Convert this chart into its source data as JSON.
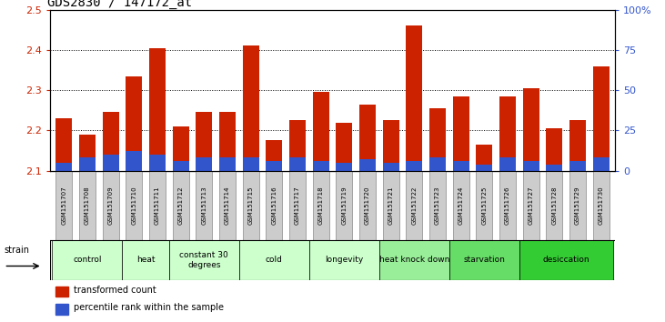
{
  "title": "GDS2830 / 147172_at",
  "samples": [
    "GSM151707",
    "GSM151708",
    "GSM151709",
    "GSM151710",
    "GSM151711",
    "GSM151712",
    "GSM151713",
    "GSM151714",
    "GSM151715",
    "GSM151716",
    "GSM151717",
    "GSM151718",
    "GSM151719",
    "GSM151720",
    "GSM151721",
    "GSM151722",
    "GSM151723",
    "GSM151724",
    "GSM151725",
    "GSM151726",
    "GSM151727",
    "GSM151728",
    "GSM151729",
    "GSM151730"
  ],
  "transformed_count": [
    2.23,
    2.19,
    2.245,
    2.335,
    2.405,
    2.21,
    2.245,
    2.245,
    2.41,
    2.175,
    2.225,
    2.295,
    2.22,
    2.265,
    2.225,
    2.46,
    2.255,
    2.285,
    2.165,
    2.285,
    2.305,
    2.205,
    2.225,
    2.36
  ],
  "percentile_rank_pct": [
    5,
    8,
    10,
    12,
    10,
    6,
    8,
    8,
    8,
    6,
    8,
    6,
    5,
    7,
    5,
    6,
    8,
    6,
    4,
    8,
    6,
    4,
    6,
    8
  ],
  "ylim_left": [
    2.1,
    2.5
  ],
  "ylim_right": [
    0,
    100
  ],
  "yticks_left": [
    2.1,
    2.2,
    2.3,
    2.4,
    2.5
  ],
  "yticks_right": [
    0,
    25,
    50,
    75,
    100
  ],
  "ytick_labels_right": [
    "0",
    "25",
    "50",
    "75",
    "100%"
  ],
  "bar_color_red": "#cc2200",
  "bar_color_blue": "#3355cc",
  "bar_width": 0.7,
  "groups": [
    {
      "label": "control",
      "start": 0,
      "end": 2,
      "color": "#ccffcc"
    },
    {
      "label": "heat",
      "start": 3,
      "end": 4,
      "color": "#ccffcc"
    },
    {
      "label": "constant 30\ndegrees",
      "start": 5,
      "end": 7,
      "color": "#ccffcc"
    },
    {
      "label": "cold",
      "start": 8,
      "end": 10,
      "color": "#ccffcc"
    },
    {
      "label": "longevity",
      "start": 11,
      "end": 13,
      "color": "#ccffcc"
    },
    {
      "label": "heat knock down",
      "start": 14,
      "end": 16,
      "color": "#99ee99"
    },
    {
      "label": "starvation",
      "start": 17,
      "end": 19,
      "color": "#66dd66"
    },
    {
      "label": "desiccation",
      "start": 20,
      "end": 23,
      "color": "#33cc33"
    }
  ],
  "legend_items": [
    {
      "label": "transformed count",
      "color": "#cc2200"
    },
    {
      "label": "percentile rank within the sample",
      "color": "#3355cc"
    }
  ],
  "strain_label": "strain",
  "background_color": "#ffffff",
  "plot_bg_color": "#ffffff",
  "tick_label_color_left": "#cc2200",
  "tick_label_color_right": "#3355cc",
  "title_fontsize": 10,
  "sample_box_color": "#cccccc",
  "sample_box_border": "#666666"
}
